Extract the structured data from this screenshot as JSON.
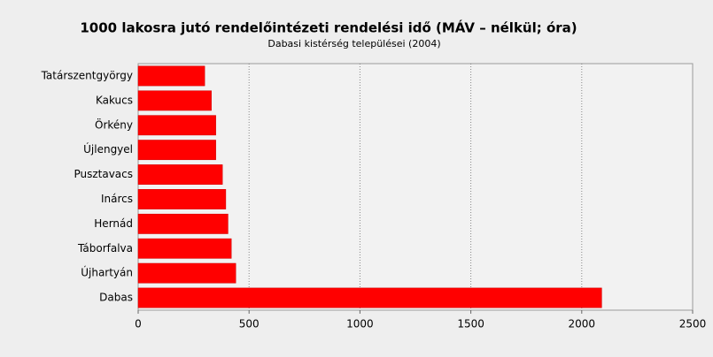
{
  "chart_data": {
    "type": "bar",
    "orientation": "horizontal",
    "title": "1000 lakosra jutó rendelőintézeti rendelési idő (MÁV – nélkül; óra)",
    "subtitle": "Dabasi kistérség települései (2004)",
    "categories": [
      "Tatárszentgyörgy",
      "Kakucs",
      "Örkény",
      "Újlengyel",
      "Pusztavacs",
      "Inárcs",
      "Hernád",
      "Táborfalva",
      "Újhartyán",
      "Dabas"
    ],
    "values": [
      300,
      330,
      350,
      350,
      380,
      395,
      405,
      420,
      440,
      2090
    ],
    "color": "#ff0000",
    "xlim": [
      0,
      2500
    ],
    "xticks": [
      0,
      500,
      1000,
      1500,
      2000,
      2500
    ],
    "grid": true
  }
}
